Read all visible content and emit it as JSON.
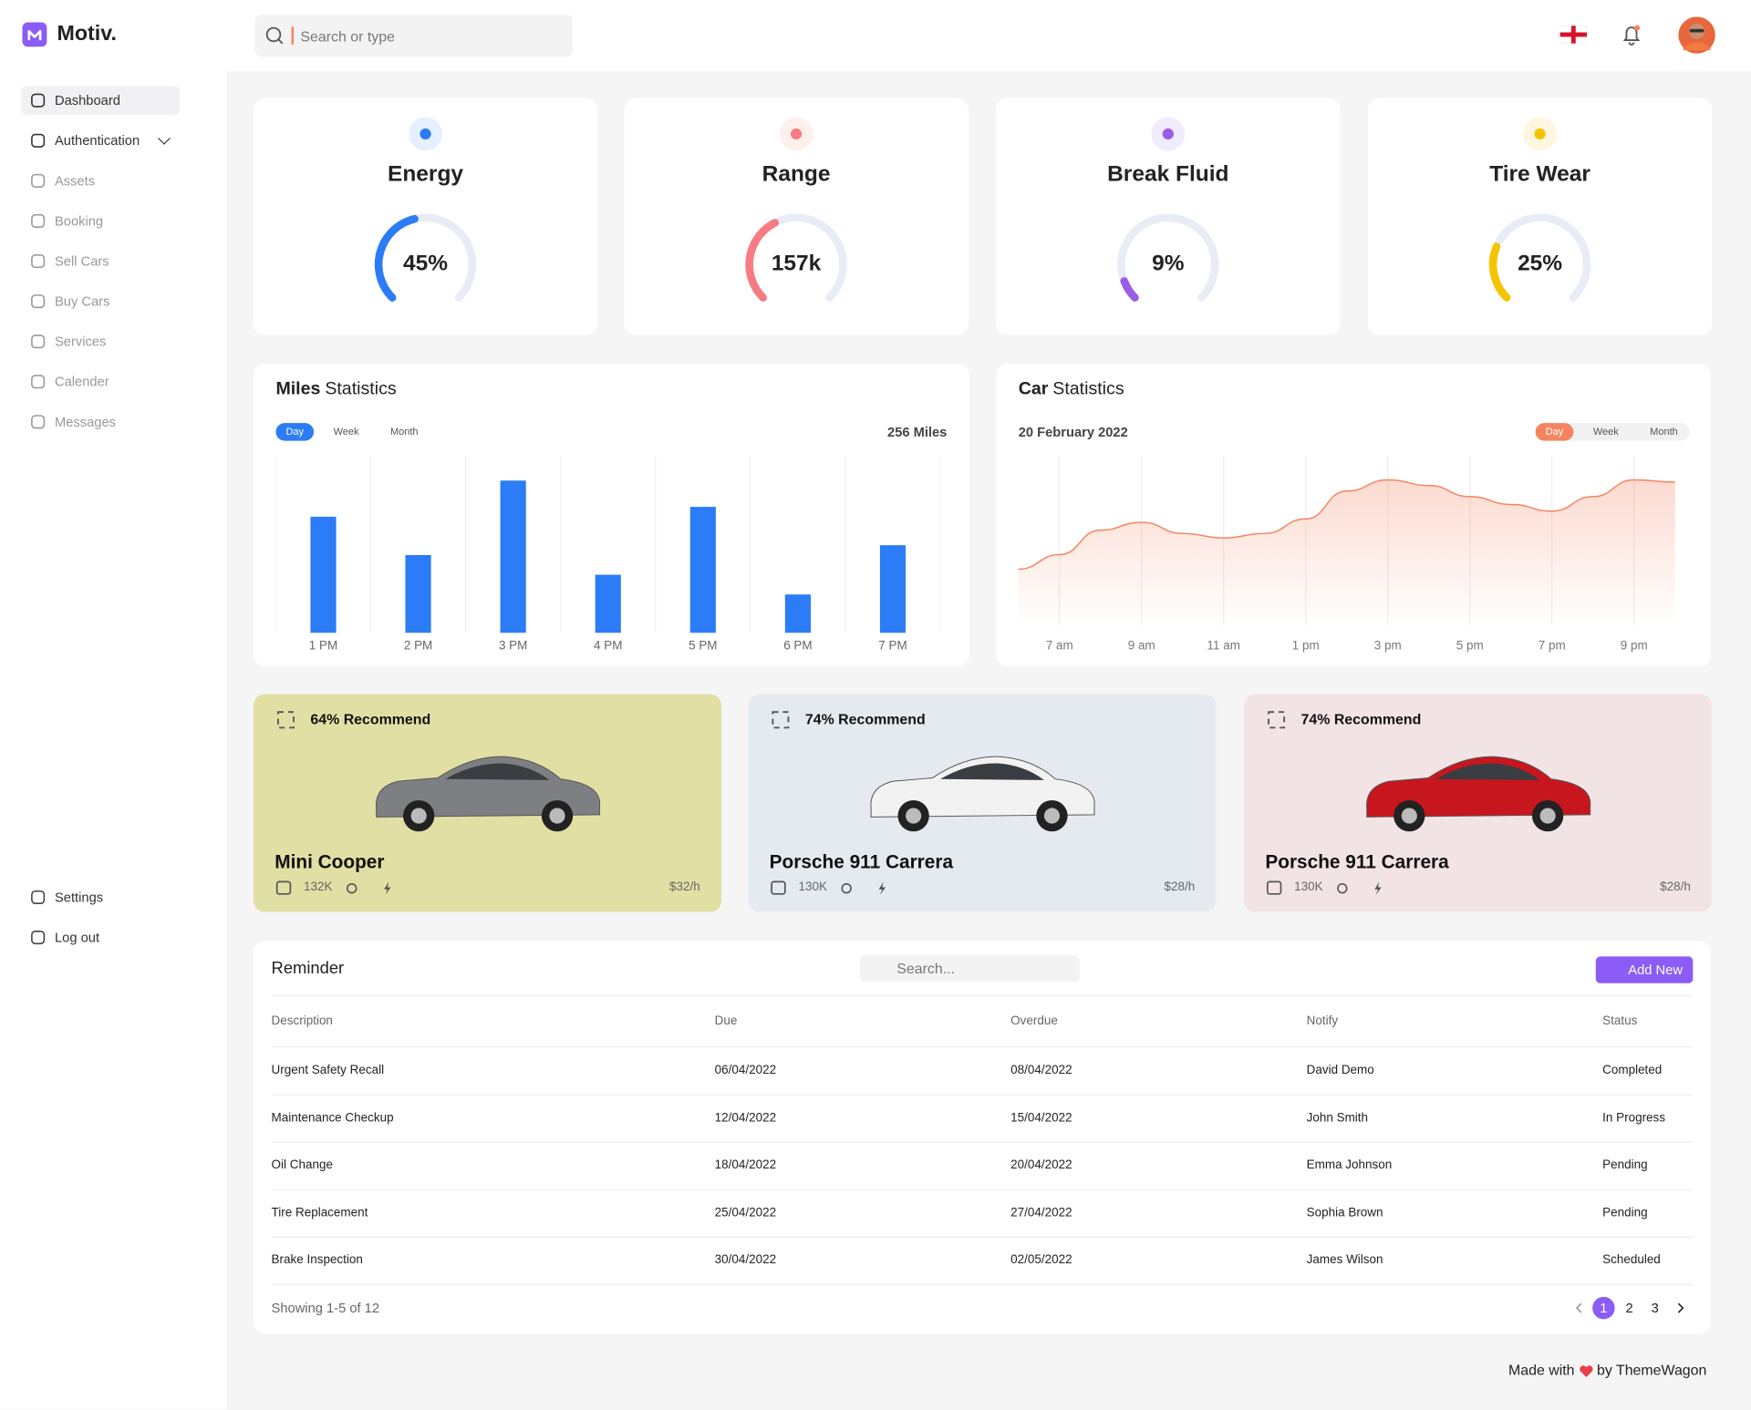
{
  "brand": "Motiv.",
  "search_placeholder": "Search or type",
  "nav": [
    "Dashboard",
    "Authentication",
    "Assets",
    "Booking",
    "Sell Cars",
    "Buy Cars",
    "Services",
    "Calender",
    "Messages"
  ],
  "nav_bottom": [
    "Settings",
    "Log out"
  ],
  "gauges": [
    {
      "title": "Energy",
      "label": "45%",
      "fill": 45,
      "color": "#2b7cf6",
      "bg": "#e6efff"
    },
    {
      "title": "Range",
      "label": "157k",
      "fill": 40,
      "color": "#f77b83",
      "bg": "#fff0ec"
    },
    {
      "title": "Break Fluid",
      "label": "9%",
      "fill": 9,
      "color": "#9b5de5",
      "bg": "#f1ebff"
    },
    {
      "title": "Tire Wear",
      "label": "25%",
      "fill": 25,
      "color": "#f5c400",
      "bg": "#fff6e0"
    }
  ],
  "miles_chart": {
    "type": "bar",
    "title_bold": "Miles",
    "title": "Statistics",
    "tabs": [
      "Day",
      "Week",
      "Month"
    ],
    "total": "256 Miles",
    "categories": [
      "1 PM",
      "2 PM",
      "3 PM",
      "4 PM",
      "5 PM",
      "6 PM",
      "7 PM"
    ],
    "values": [
      106,
      71,
      139,
      53,
      115,
      35,
      80
    ],
    "ylim": [
      0,
      160
    ],
    "color": "#2b7cf6"
  },
  "car_chart": {
    "type": "area",
    "title_bold": "Car",
    "title": "Statistics",
    "date": "20 February 2022",
    "tabs": [
      "Day",
      "Week",
      "Month"
    ],
    "categories": [
      null,
      "7 am",
      null,
      "9 am",
      null,
      "11 am",
      null,
      "1 pm",
      null,
      "3 pm",
      null,
      "5 pm",
      null,
      "7 pm",
      null,
      "9 pm",
      null
    ],
    "values": [
      50,
      63,
      85,
      92,
      82,
      78,
      82,
      95,
      120,
      130,
      125,
      115,
      108,
      102,
      115,
      130,
      128
    ],
    "ylim": [
      0,
      150
    ],
    "color": "#f4845f"
  },
  "cars": [
    {
      "recommend": "64% Recommend",
      "name": "Mini Cooper",
      "miles": "132K",
      "price": "$32/h",
      "bg": "#e1dfa4",
      "car_color": "#7d7f82"
    },
    {
      "recommend": "74% Recommend",
      "name": "Porsche 911 Carrera",
      "miles": "130K",
      "price": "$28/h",
      "bg": "#e4eaf0",
      "car_color": "#f2f2f2"
    },
    {
      "recommend": "74% Recommend",
      "name": "Porsche 911 Carrera",
      "miles": "130K",
      "price": "$28/h",
      "bg": "#f2e3e5",
      "car_color": "#c8161e"
    }
  ],
  "reminder": {
    "title": "Reminder",
    "search_placeholder": "Search...",
    "add": "Add New",
    "columns": [
      "Description",
      "Due",
      "Overdue",
      "Notify",
      "Status"
    ],
    "rows": [
      [
        "Urgent Safety Recall",
        "06/04/2022",
        "08/04/2022",
        "David Demo",
        "Completed"
      ],
      [
        "Maintenance Checkup",
        "12/04/2022",
        "15/04/2022",
        "John Smith",
        "In Progress"
      ],
      [
        "Oil Change",
        "18/04/2022",
        "20/04/2022",
        "Emma Johnson",
        "Pending"
      ],
      [
        "Tire Replacement",
        "25/04/2022",
        "27/04/2022",
        "Sophia Brown",
        "Pending"
      ],
      [
        "Brake Inspection",
        "30/04/2022",
        "02/05/2022",
        "James Wilson",
        "Scheduled"
      ]
    ],
    "showing": "Showing 1-5 of 12",
    "pages": [
      1,
      2,
      3
    ]
  },
  "footer": {
    "before": "Made with",
    "after": "by ThemeWagon"
  }
}
